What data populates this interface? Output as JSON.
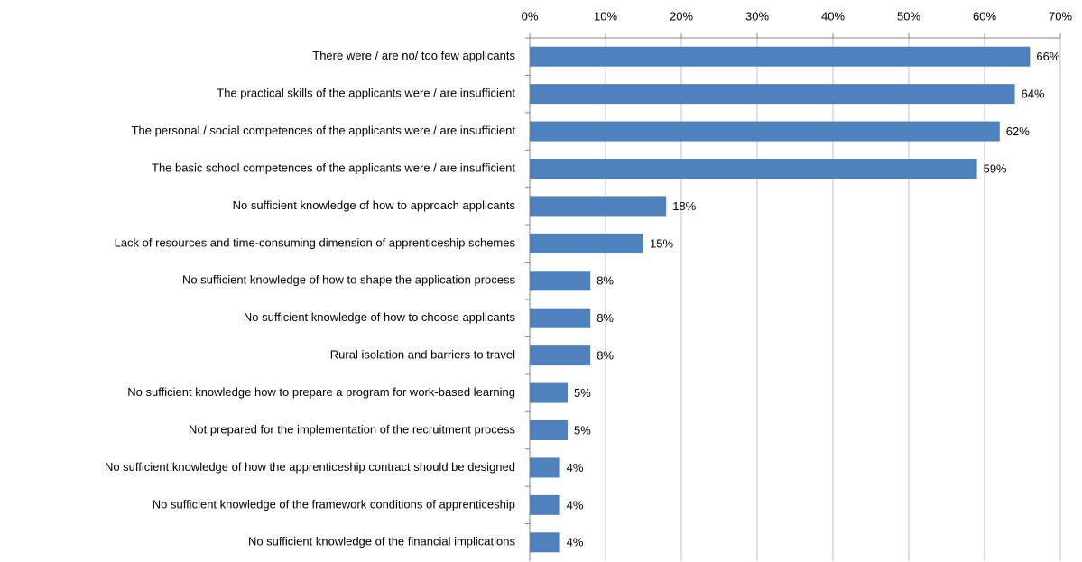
{
  "chart_data": {
    "type": "bar",
    "orientation": "horizontal",
    "categories": [
      "There were / are no/ too few applicants",
      "The practical skills of the applicants were / are insufficient",
      "The personal / social competences of the applicants were / are insufficient",
      "The basic school competences of the applicants were / are insufficient",
      "No sufficient knowledge of how to approach applicants",
      "Lack of resources and time-consuming dimension of apprenticeship schemes",
      "No sufficient knowledge of how to shape the application process",
      "No sufficient knowledge of how to choose applicants",
      "Rural isolation and barriers to travel",
      "No sufficient knowledge how to prepare a program for work-based learning",
      "Not prepared for the implementation of the recruitment process",
      "No sufficient knowledge of how the apprenticeship contract should be designed",
      "No sufficient knowledge of the framework conditions of apprenticeship",
      "No sufficient knowledge of the financial implications"
    ],
    "values": [
      66,
      64,
      62,
      59,
      18,
      15,
      8,
      8,
      8,
      5,
      5,
      4,
      4,
      4
    ],
    "value_labels": [
      "66%",
      "64%",
      "62%",
      "59%",
      "18%",
      "15%",
      "8%",
      "8%",
      "8%",
      "5%",
      "5%",
      "4%",
      "4%",
      "4%"
    ],
    "color": "#4f81bd",
    "xlim": [
      0,
      70
    ],
    "xticks": [
      {
        "value": 0,
        "label": "0%"
      },
      {
        "value": 10,
        "label": "10%"
      },
      {
        "value": 20,
        "label": "20%"
      },
      {
        "value": 30,
        "label": "30%"
      },
      {
        "value": 40,
        "label": "40%"
      },
      {
        "value": 50,
        "label": "50%"
      },
      {
        "value": 60,
        "label": "60%"
      },
      {
        "value": 70,
        "label": "70%"
      }
    ],
    "grid": true
  }
}
